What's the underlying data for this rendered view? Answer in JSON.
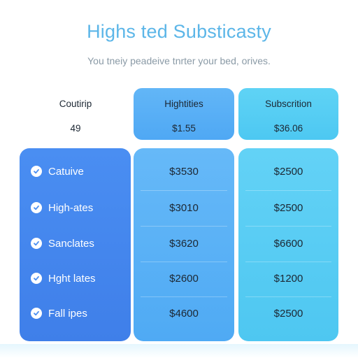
{
  "header": {
    "title": "Highs ted Substicasty",
    "subtitle": "You tneiy peadeive tnrter your bed, orives."
  },
  "plans": [
    {
      "name": "Coutirip",
      "price": "49"
    },
    {
      "name": "Hightities",
      "price": "$1.55"
    },
    {
      "name": "Subscrition",
      "price": "$36.06"
    }
  ],
  "features": [
    {
      "label": "Catuive",
      "icon": "check-icon",
      "plan2": "$3530",
      "plan3": "$2500"
    },
    {
      "label": "High-ates",
      "icon": "check-icon",
      "plan2": "$3010",
      "plan3": "$2500"
    },
    {
      "label": "Sanclates",
      "icon": "check-icon",
      "plan2": "$3620",
      "plan3": "$6600"
    },
    {
      "label": "Hght lates",
      "icon": "check-icon",
      "plan2": "$2600",
      "plan3": "$1200"
    },
    {
      "label": "Fall ipes",
      "icon": "check-icon",
      "plan2": "$4600",
      "plan3": "$2500"
    }
  ],
  "colors": {
    "title": "#5cb6e8",
    "plan1_column": "#4a8ef2",
    "plan2_column": "#5eb3f6",
    "plan3_column": "#58cdf4"
  }
}
